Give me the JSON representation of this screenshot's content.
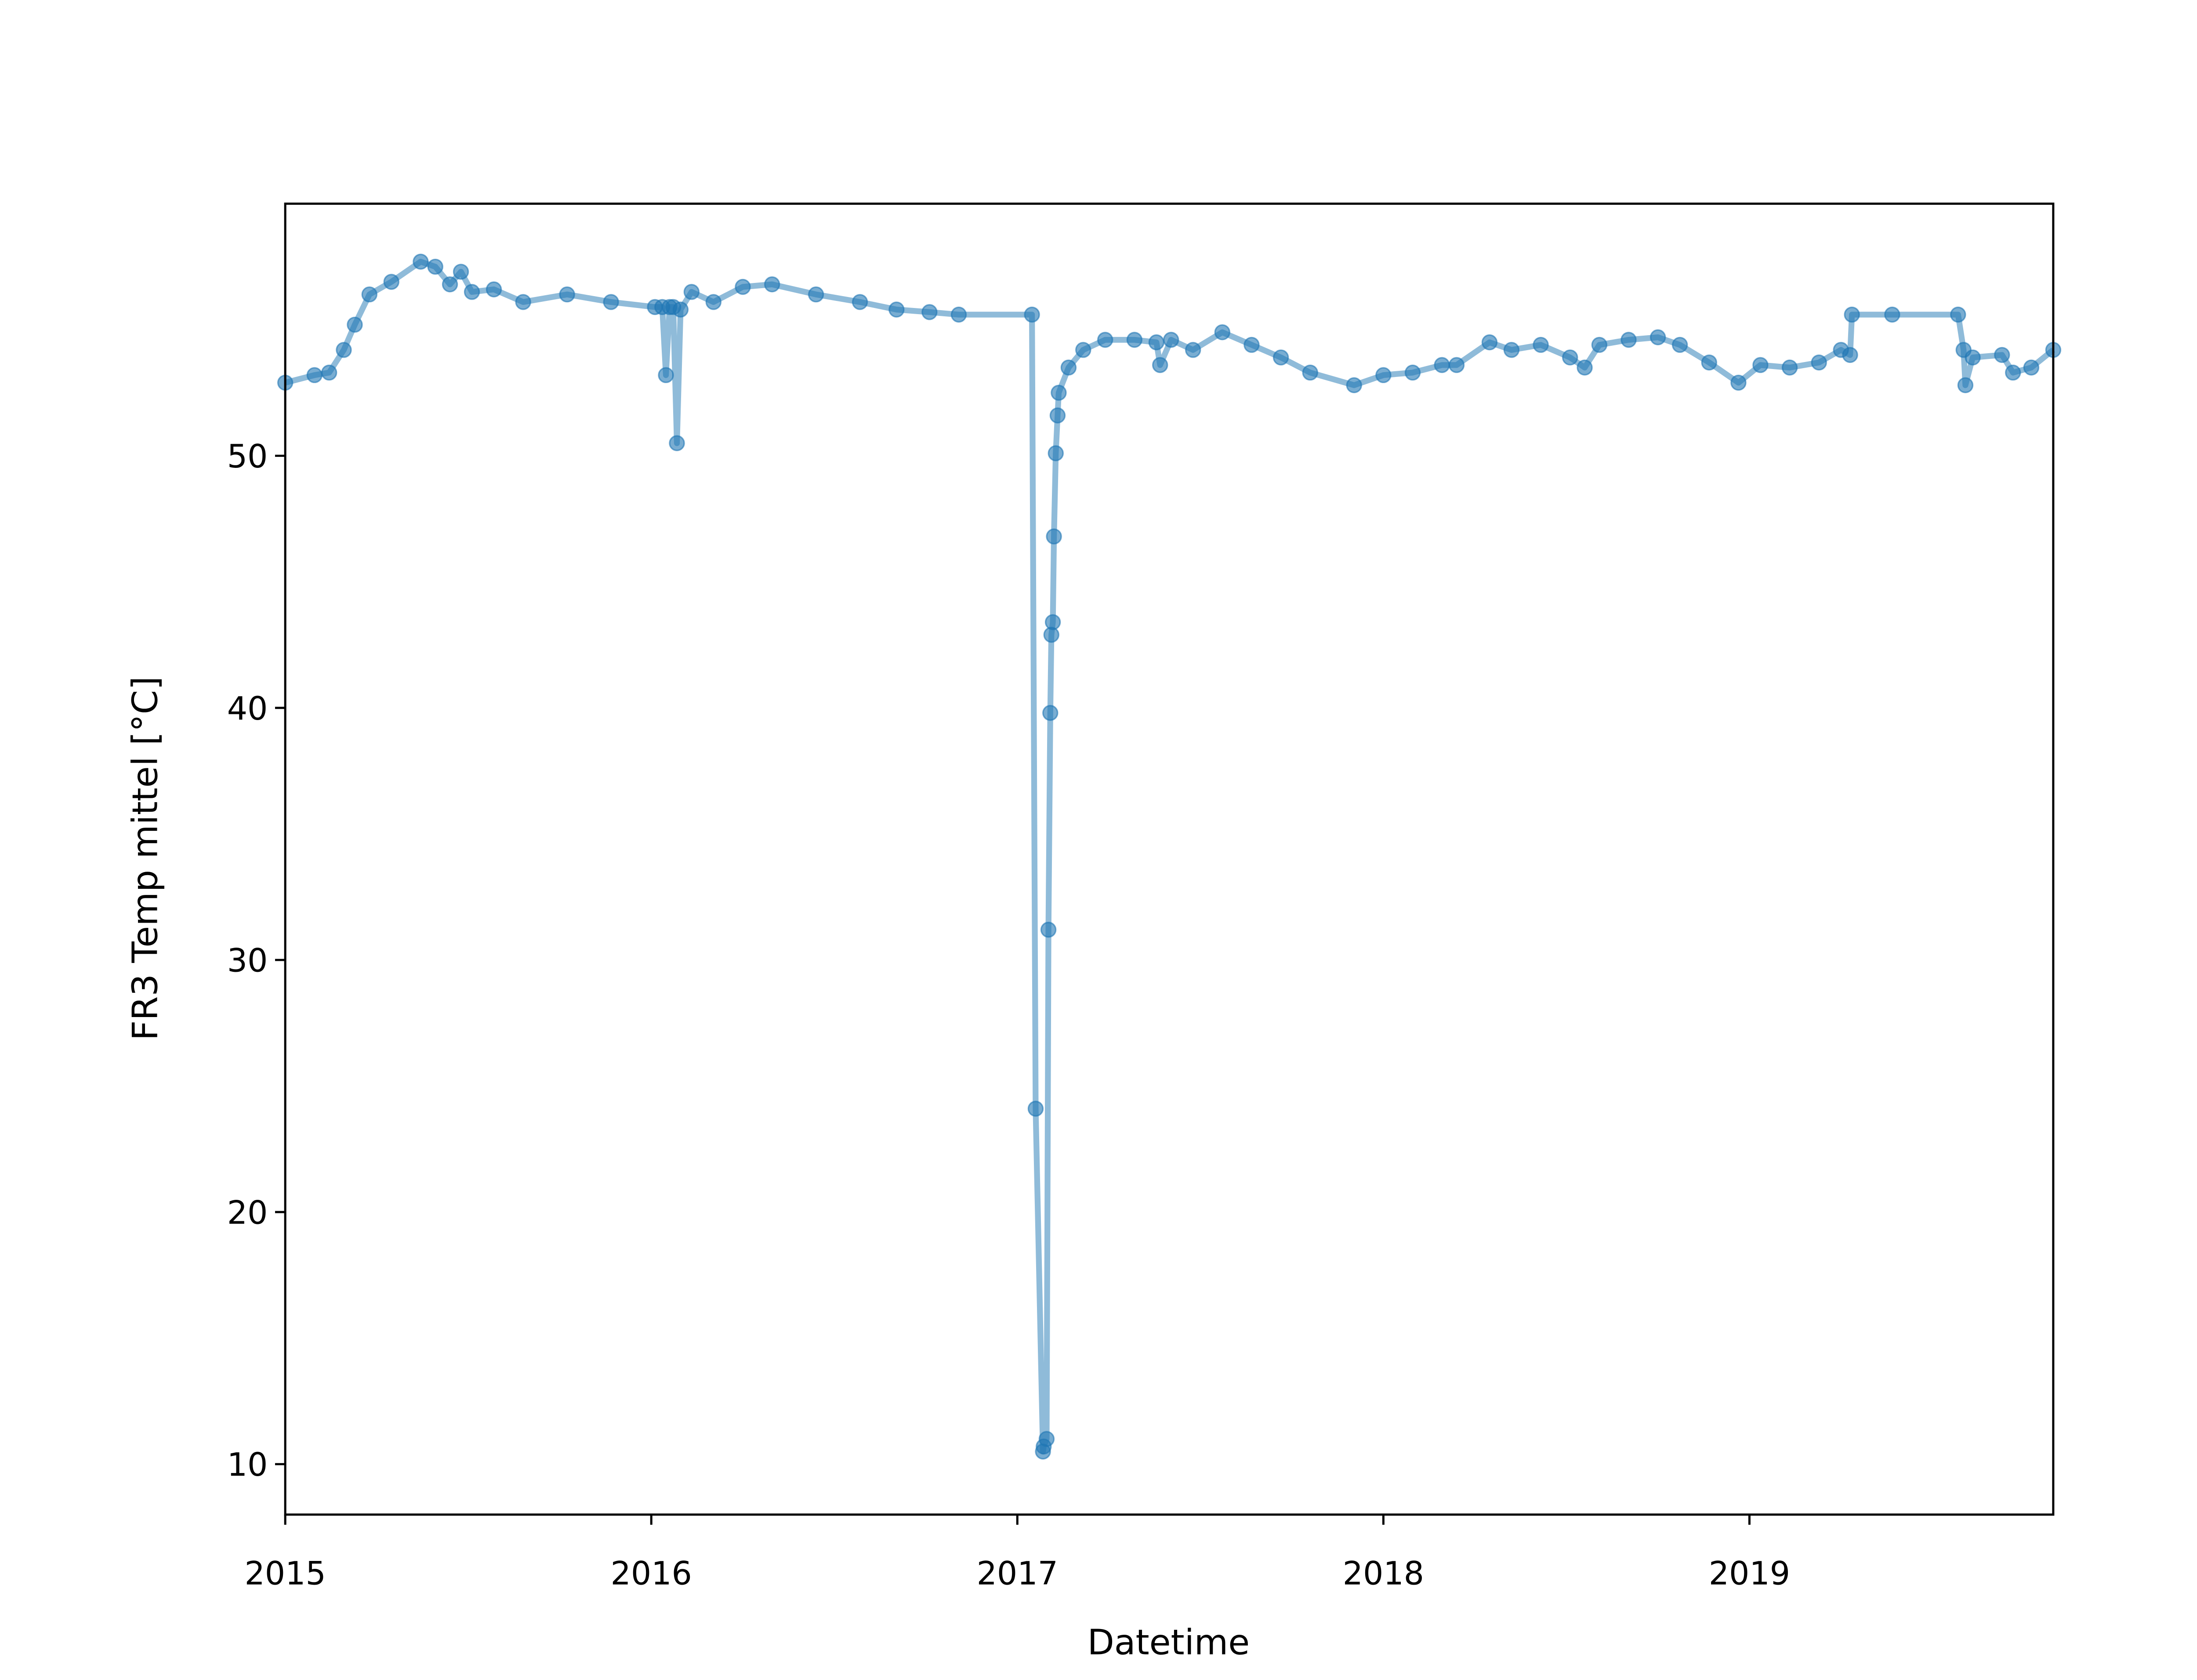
{
  "chart_data": {
    "type": "line",
    "x_label": "Datetime",
    "y_label": "FR3 Temp mittel [°C]",
    "x": [
      2015.0,
      2015.08,
      2015.12,
      2015.16,
      2015.19,
      2015.23,
      2015.29,
      2015.37,
      2015.41,
      2015.45,
      2015.48,
      2015.51,
      2015.57,
      2015.65,
      2015.77,
      2015.89,
      2016.01,
      2016.03,
      2016.04,
      2016.05,
      2016.06,
      2016.07,
      2016.08,
      2016.11,
      2016.17,
      2016.25,
      2016.33,
      2016.45,
      2016.57,
      2016.67,
      2016.76,
      2016.84,
      2017.04,
      2017.05,
      2017.07,
      2017.072,
      2017.08,
      2017.085,
      2017.09,
      2017.093,
      2017.097,
      2017.1,
      2017.105,
      2017.11,
      2017.113,
      2017.14,
      2017.18,
      2017.24,
      2017.32,
      2017.38,
      2017.39,
      2017.42,
      2017.48,
      2017.56,
      2017.64,
      2017.72,
      2017.8,
      2017.92,
      2018.0,
      2018.08,
      2018.16,
      2018.2,
      2018.29,
      2018.35,
      2018.43,
      2018.51,
      2018.55,
      2018.59,
      2018.67,
      2018.75,
      2018.81,
      2018.89,
      2018.97,
      2019.03,
      2019.11,
      2019.19,
      2019.25,
      2019.275,
      2019.28,
      2019.39,
      2019.57,
      2019.585,
      2019.59,
      2019.61,
      2019.69,
      2019.72,
      2019.77,
      2019.83
    ],
    "series": [
      {
        "name": "FR3 Temp mittel",
        "color": "#1f77b4",
        "values": [
          52.9,
          53.2,
          53.3,
          54.2,
          55.2,
          56.4,
          56.9,
          57.7,
          57.5,
          56.8,
          57.3,
          56.5,
          56.6,
          56.1,
          56.4,
          56.1,
          55.9,
          55.9,
          53.2,
          55.9,
          55.9,
          50.5,
          55.8,
          56.5,
          56.1,
          56.7,
          56.8,
          56.4,
          56.1,
          55.8,
          55.7,
          55.6,
          55.6,
          24.1,
          10.5,
          10.7,
          11.0,
          31.2,
          39.8,
          42.9,
          43.4,
          46.8,
          50.1,
          51.6,
          52.5,
          53.5,
          54.2,
          54.6,
          54.6,
          54.5,
          53.6,
          54.6,
          54.2,
          54.9,
          54.4,
          53.9,
          53.3,
          52.8,
          53.2,
          53.3,
          53.6,
          53.6,
          54.5,
          54.2,
          54.4,
          53.9,
          53.5,
          54.4,
          54.6,
          54.7,
          54.4,
          53.7,
          52.9,
          53.6,
          53.5,
          53.7,
          54.2,
          54.0,
          55.6,
          55.6,
          55.6,
          54.2,
          52.8,
          53.9,
          54.0,
          53.3,
          53.5,
          54.2
        ]
      }
    ],
    "xlim": [
      2015,
      2019.83
    ],
    "xticks": [
      2015,
      2016,
      2017,
      2018,
      2019
    ],
    "ylim": [
      8,
      60
    ],
    "yticks": [
      10,
      20,
      30,
      40,
      50
    ],
    "grid": false
  }
}
